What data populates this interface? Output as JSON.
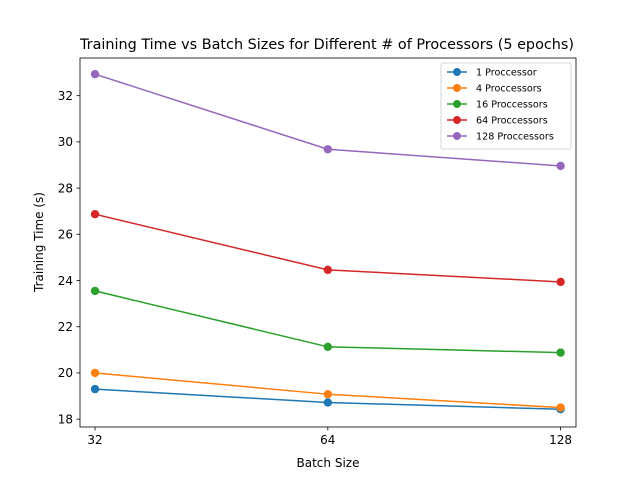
{
  "chart_data": {
    "type": "line",
    "title": "Training Time vs Batch Sizes for Different # of Processors (5 epochs)",
    "xlabel": "Batch Size",
    "ylabel": "Training Time (s)",
    "x": [
      32,
      64,
      128
    ],
    "x_tick_labels": [
      "32",
      "64",
      "128"
    ],
    "x_scale": "log2",
    "y_ticks": [
      18,
      20,
      22,
      24,
      26,
      28,
      30,
      32
    ],
    "y_tick_labels": [
      "18",
      "20",
      "22",
      "24",
      "26",
      "28",
      "30",
      "32"
    ],
    "xlim": [
      30.6,
      134
    ],
    "ylim": [
      17.66,
      33.63
    ],
    "grid": false,
    "legend_position": "upper right",
    "series": [
      {
        "name": "1 Proccessor",
        "color": "#1f77b4",
        "values": [
          19.3,
          18.72,
          18.43
        ]
      },
      {
        "name": "4 Proccessors",
        "color": "#ff7f0e",
        "values": [
          20.0,
          19.08,
          18.5
        ]
      },
      {
        "name": "16 Proccessors",
        "color": "#2ca02c",
        "values": [
          23.55,
          21.13,
          20.88
        ]
      },
      {
        "name": "64 Proccessors",
        "color": "#d62728",
        "values": [
          26.87,
          24.46,
          23.94
        ]
      },
      {
        "name": "128 Proccessors",
        "color": "#9467bd",
        "values": [
          32.93,
          29.68,
          28.96
        ]
      }
    ]
  }
}
